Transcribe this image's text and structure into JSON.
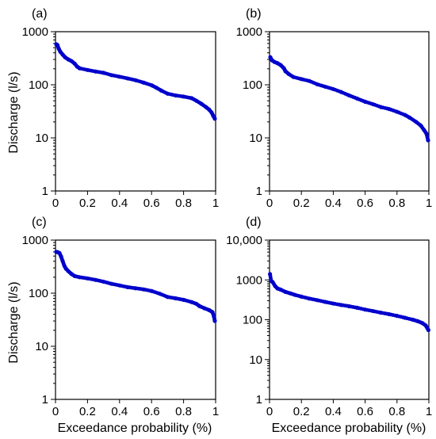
{
  "chart_data": [
    {
      "id": "a",
      "type": "scatter",
      "panel_label": "(a)",
      "xlabel": "",
      "ylabel": "Discharge (l/s)",
      "xlim": [
        0,
        1
      ],
      "ylim": [
        1,
        1000
      ],
      "yscale": "log",
      "xticks": [
        "0",
        "0.2",
        "0.4",
        "0.6",
        "0.8",
        "1"
      ],
      "yticks": [
        "1",
        "10",
        "100",
        "1000"
      ],
      "marker_color": "#0000cc",
      "series": [
        {
          "points": [
            [
              0.005,
              580
            ],
            [
              0.012,
              560
            ],
            [
              0.02,
              480
            ],
            [
              0.03,
              420
            ],
            [
              0.045,
              370
            ],
            [
              0.06,
              330
            ],
            [
              0.08,
              300
            ],
            [
              0.1,
              280
            ],
            [
              0.12,
              250
            ],
            [
              0.135,
              220
            ],
            [
              0.15,
              205
            ],
            [
              0.2,
              190
            ],
            [
              0.25,
              178
            ],
            [
              0.3,
              168
            ],
            [
              0.35,
              152
            ],
            [
              0.4,
              142
            ],
            [
              0.45,
              132
            ],
            [
              0.5,
              122
            ],
            [
              0.55,
              110
            ],
            [
              0.6,
              98
            ],
            [
              0.63,
              88
            ],
            [
              0.66,
              78
            ],
            [
              0.7,
              68
            ],
            [
              0.75,
              63
            ],
            [
              0.8,
              60
            ],
            [
              0.85,
              56
            ],
            [
              0.88,
              50
            ],
            [
              0.91,
              44
            ],
            [
              0.94,
              38
            ],
            [
              0.96,
              34
            ],
            [
              0.975,
              30
            ],
            [
              0.985,
              26
            ],
            [
              0.995,
              23
            ]
          ]
        }
      ]
    },
    {
      "id": "b",
      "type": "scatter",
      "panel_label": "(b)",
      "xlabel": "",
      "ylabel": "",
      "xlim": [
        0,
        1
      ],
      "ylim": [
        1,
        1000
      ],
      "yscale": "log",
      "xticks": [
        "0",
        "0.2",
        "0.4",
        "0.6",
        "0.8",
        "1"
      ],
      "yticks": [
        "1",
        "10",
        "100",
        "1000"
      ],
      "marker_color": "#0000cc",
      "series": [
        {
          "points": [
            [
              0.005,
              330
            ],
            [
              0.015,
              290
            ],
            [
              0.03,
              270
            ],
            [
              0.05,
              255
            ],
            [
              0.07,
              235
            ],
            [
              0.09,
              205
            ],
            [
              0.1,
              180
            ],
            [
              0.12,
              160
            ],
            [
              0.15,
              140
            ],
            [
              0.2,
              128
            ],
            [
              0.25,
              118
            ],
            [
              0.3,
              102
            ],
            [
              0.35,
              92
            ],
            [
              0.4,
              83
            ],
            [
              0.45,
              73
            ],
            [
              0.5,
              63
            ],
            [
              0.55,
              55
            ],
            [
              0.6,
              48
            ],
            [
              0.65,
              43
            ],
            [
              0.7,
              38
            ],
            [
              0.75,
              35
            ],
            [
              0.8,
              31
            ],
            [
              0.85,
              27
            ],
            [
              0.88,
              24
            ],
            [
              0.92,
              20
            ],
            [
              0.95,
              17
            ],
            [
              0.97,
              14
            ],
            [
              0.985,
              12
            ],
            [
              0.995,
              9
            ]
          ]
        }
      ]
    },
    {
      "id": "c",
      "type": "scatter",
      "panel_label": "(c)",
      "xlabel": "Exceedance probability (%)",
      "ylabel": "Discharge (l/s)",
      "xlim": [
        0,
        1
      ],
      "ylim": [
        1,
        1000
      ],
      "yscale": "log",
      "xticks": [
        "0",
        "0.2",
        "0.4",
        "0.6",
        "0.8",
        "1"
      ],
      "yticks": [
        "1",
        "10",
        "100",
        "1000"
      ],
      "marker_color": "#0000cc",
      "series": [
        {
          "points": [
            [
              0.005,
              600
            ],
            [
              0.015,
              590
            ],
            [
              0.025,
              570
            ],
            [
              0.035,
              490
            ],
            [
              0.045,
              400
            ],
            [
              0.055,
              330
            ],
            [
              0.065,
              290
            ],
            [
              0.08,
              260
            ],
            [
              0.1,
              230
            ],
            [
              0.12,
              210
            ],
            [
              0.15,
              200
            ],
            [
              0.2,
              190
            ],
            [
              0.25,
              178
            ],
            [
              0.3,
              165
            ],
            [
              0.35,
              150
            ],
            [
              0.4,
              140
            ],
            [
              0.45,
              130
            ],
            [
              0.5,
              124
            ],
            [
              0.55,
              118
            ],
            [
              0.6,
              110
            ],
            [
              0.65,
              98
            ],
            [
              0.7,
              85
            ],
            [
              0.75,
              80
            ],
            [
              0.8,
              75
            ],
            [
              0.85,
              68
            ],
            [
              0.88,
              63
            ],
            [
              0.9,
              57
            ],
            [
              0.93,
              52
            ],
            [
              0.96,
              48
            ],
            [
              0.98,
              44
            ],
            [
              0.99,
              36
            ],
            [
              0.995,
              30
            ]
          ]
        }
      ]
    },
    {
      "id": "d",
      "type": "scatter",
      "panel_label": "(d)",
      "xlabel": "Exceedance probability (%)",
      "ylabel": "",
      "xlim": [
        0,
        1
      ],
      "ylim": [
        1,
        10000
      ],
      "yscale": "log",
      "xticks": [
        "0",
        "0.2",
        "0.4",
        "0.6",
        "0.8",
        "1"
      ],
      "yticks": [
        "1",
        "10",
        "100",
        "1000",
        "10,000"
      ],
      "marker_color": "#0000cc",
      "series": [
        {
          "points": [
            [
              0.003,
              1400
            ],
            [
              0.01,
              950
            ],
            [
              0.02,
              880
            ],
            [
              0.035,
              700
            ],
            [
              0.05,
              610
            ],
            [
              0.07,
              570
            ],
            [
              0.1,
              500
            ],
            [
              0.13,
              460
            ],
            [
              0.16,
              420
            ],
            [
              0.2,
              380
            ],
            [
              0.25,
              340
            ],
            [
              0.3,
              310
            ],
            [
              0.35,
              280
            ],
            [
              0.4,
              255
            ],
            [
              0.45,
              235
            ],
            [
              0.5,
              218
            ],
            [
              0.55,
              200
            ],
            [
              0.6,
              180
            ],
            [
              0.65,
              165
            ],
            [
              0.7,
              150
            ],
            [
              0.75,
              138
            ],
            [
              0.8,
              125
            ],
            [
              0.85,
              112
            ],
            [
              0.9,
              100
            ],
            [
              0.93,
              92
            ],
            [
              0.96,
              82
            ],
            [
              0.98,
              72
            ],
            [
              0.99,
              62
            ],
            [
              0.997,
              55
            ]
          ]
        }
      ]
    }
  ]
}
